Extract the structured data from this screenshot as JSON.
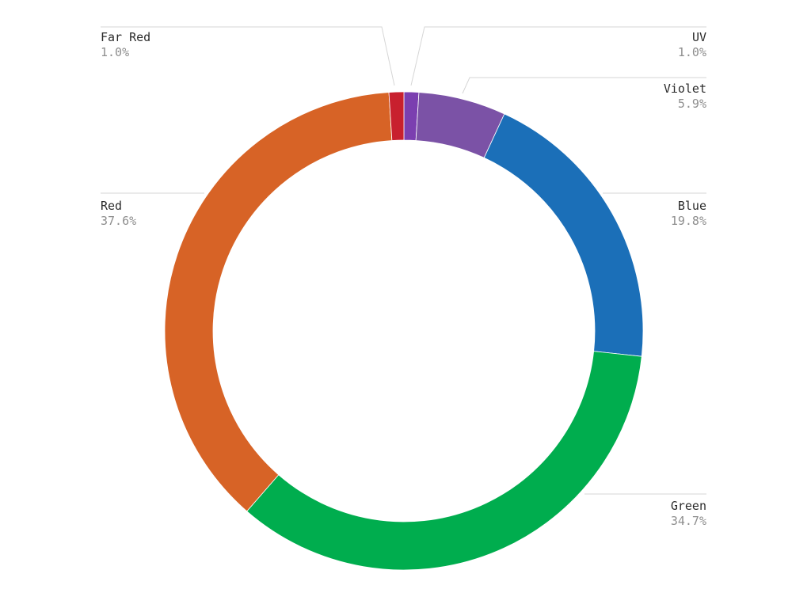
{
  "chart_data": {
    "type": "pie",
    "variant": "donut",
    "legend": "none",
    "slices": [
      {
        "label": "UV",
        "value": 1.0,
        "value_text": "1.0%",
        "color": "#7B3FB0"
      },
      {
        "label": "Violet",
        "value": 5.9,
        "value_text": "5.9%",
        "color": "#7B52A6"
      },
      {
        "label": "Blue",
        "value": 19.8,
        "value_text": "19.8%",
        "color": "#1B6FB8"
      },
      {
        "label": "Green",
        "value": 34.7,
        "value_text": "34.7%",
        "color": "#00AD4E"
      },
      {
        "label": "Red",
        "value": 37.6,
        "value_text": "37.6%",
        "color": "#D76326"
      },
      {
        "label": "Far Red",
        "value": 1.0,
        "value_text": "1.0%",
        "color": "#C8202E"
      }
    ]
  }
}
